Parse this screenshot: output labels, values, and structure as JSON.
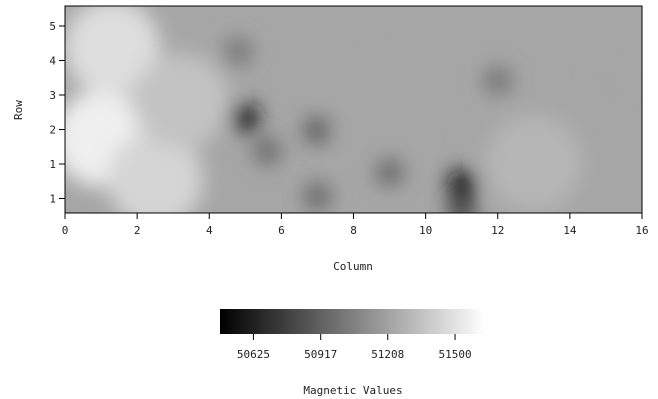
{
  "chart_data": {
    "type": "heatmap",
    "xlabel": "Column",
    "ylabel": "Row",
    "xlim": [
      0,
      16
    ],
    "ylim": [
      0.5,
      5.5
    ],
    "x_ticks": [
      "0",
      "2",
      "4",
      "6",
      "8",
      "10",
      "12",
      "14",
      "16"
    ],
    "y_ticks": [
      "1",
      "1",
      "2",
      "3",
      "4",
      "5"
    ],
    "colorbar": {
      "title": "Magnetic Values",
      "min": 50480,
      "max": 51630,
      "ticks": [
        "50625",
        "50917",
        "51208",
        "51500"
      ]
    },
    "grid": false,
    "colormap": "grayscale",
    "colormap_low": "#000000",
    "colormap_high": "#ffffff",
    "background": "rgb(166,166,166)",
    "features": [
      {
        "label": "bright band",
        "x": 1.0,
        "y": 2.3,
        "value": 51560
      },
      {
        "label": "bright band",
        "x": 1.3,
        "y": 4.5,
        "value": 51480
      },
      {
        "label": "bright band",
        "x": 2.5,
        "y": 1.3,
        "value": 51440
      },
      {
        "label": "bright band",
        "x": 3.2,
        "y": 3.2,
        "value": 51360
      },
      {
        "label": "dark lobe",
        "x": 5.0,
        "y": 2.8,
        "value": 50560
      },
      {
        "label": "dark halo",
        "x": 5.6,
        "y": 2.0,
        "value": 50960
      },
      {
        "label": "dark patch",
        "x": 4.8,
        "y": 4.4,
        "value": 51010
      },
      {
        "label": "low",
        "x": 7.0,
        "y": 2.5,
        "value": 50910
      },
      {
        "label": "low",
        "x": 7.0,
        "y": 0.9,
        "value": 50950
      },
      {
        "label": "low",
        "x": 9.0,
        "y": 1.5,
        "value": 50940
      },
      {
        "label": "dark lobe",
        "x": 11.0,
        "y": 1.2,
        "value": 50520
      },
      {
        "label": "dark lobe",
        "x": 11.0,
        "y": 0.6,
        "value": 50760
      },
      {
        "label": "low",
        "x": 12.0,
        "y": 3.7,
        "value": 51000
      },
      {
        "label": "high",
        "x": 13.0,
        "y": 1.7,
        "value": 51300
      },
      {
        "label": "high",
        "x": 8.7,
        "y": 3.0,
        "value": 51230
      },
      {
        "label": "high",
        "x": 15.0,
        "y": 3.5,
        "value": 51220
      }
    ]
  }
}
